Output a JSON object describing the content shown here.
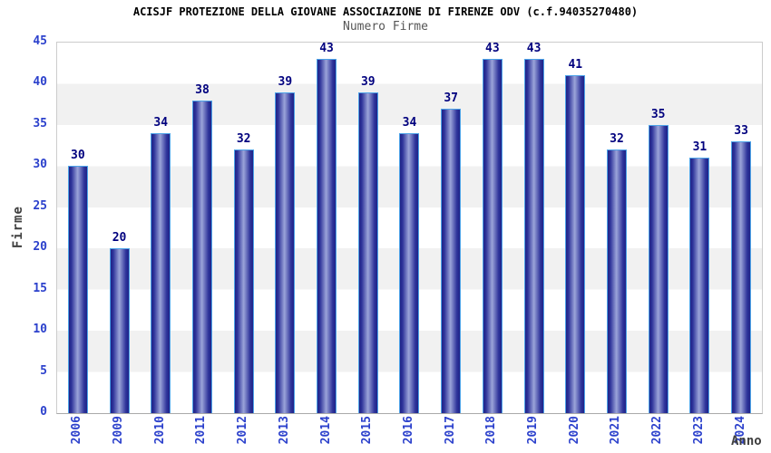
{
  "chart_data": {
    "type": "bar",
    "title": "ACISJF PROTEZIONE DELLA GIOVANE ASSOCIAZIONE DI FIRENZE ODV (c.f.94035270480)",
    "subtitle": "Numero Firme",
    "xlabel": "Anno",
    "ylabel": "Firme",
    "categories": [
      "2006",
      "2009",
      "2010",
      "2011",
      "2012",
      "2013",
      "2014",
      "2015",
      "2016",
      "2017",
      "2018",
      "2019",
      "2020",
      "2021",
      "2022",
      "2023",
      "2024"
    ],
    "values": [
      30,
      20,
      34,
      38,
      32,
      39,
      43,
      39,
      34,
      37,
      43,
      43,
      41,
      32,
      35,
      31,
      33
    ],
    "ylim": [
      0,
      45
    ],
    "ytick_step": 5,
    "yticks": [
      0,
      5,
      10,
      15,
      20,
      25,
      30,
      35,
      40,
      45
    ],
    "grid": "horizontal-bands",
    "legend_position": "none",
    "colors": {
      "tick_label": "#2c41cc",
      "value_label": "#00007e",
      "band": "#f1f1f1",
      "plot_border": "#cccccc",
      "axis_line": "#aaaaaa",
      "bar_border": "#4da3e8",
      "bar_dark": "#1f2387",
      "bar_mid": "#2e339a",
      "bar_light": "#9ba4d9",
      "title": "#000000",
      "subtitle": "#565656",
      "axis_title": "#404040"
    }
  }
}
